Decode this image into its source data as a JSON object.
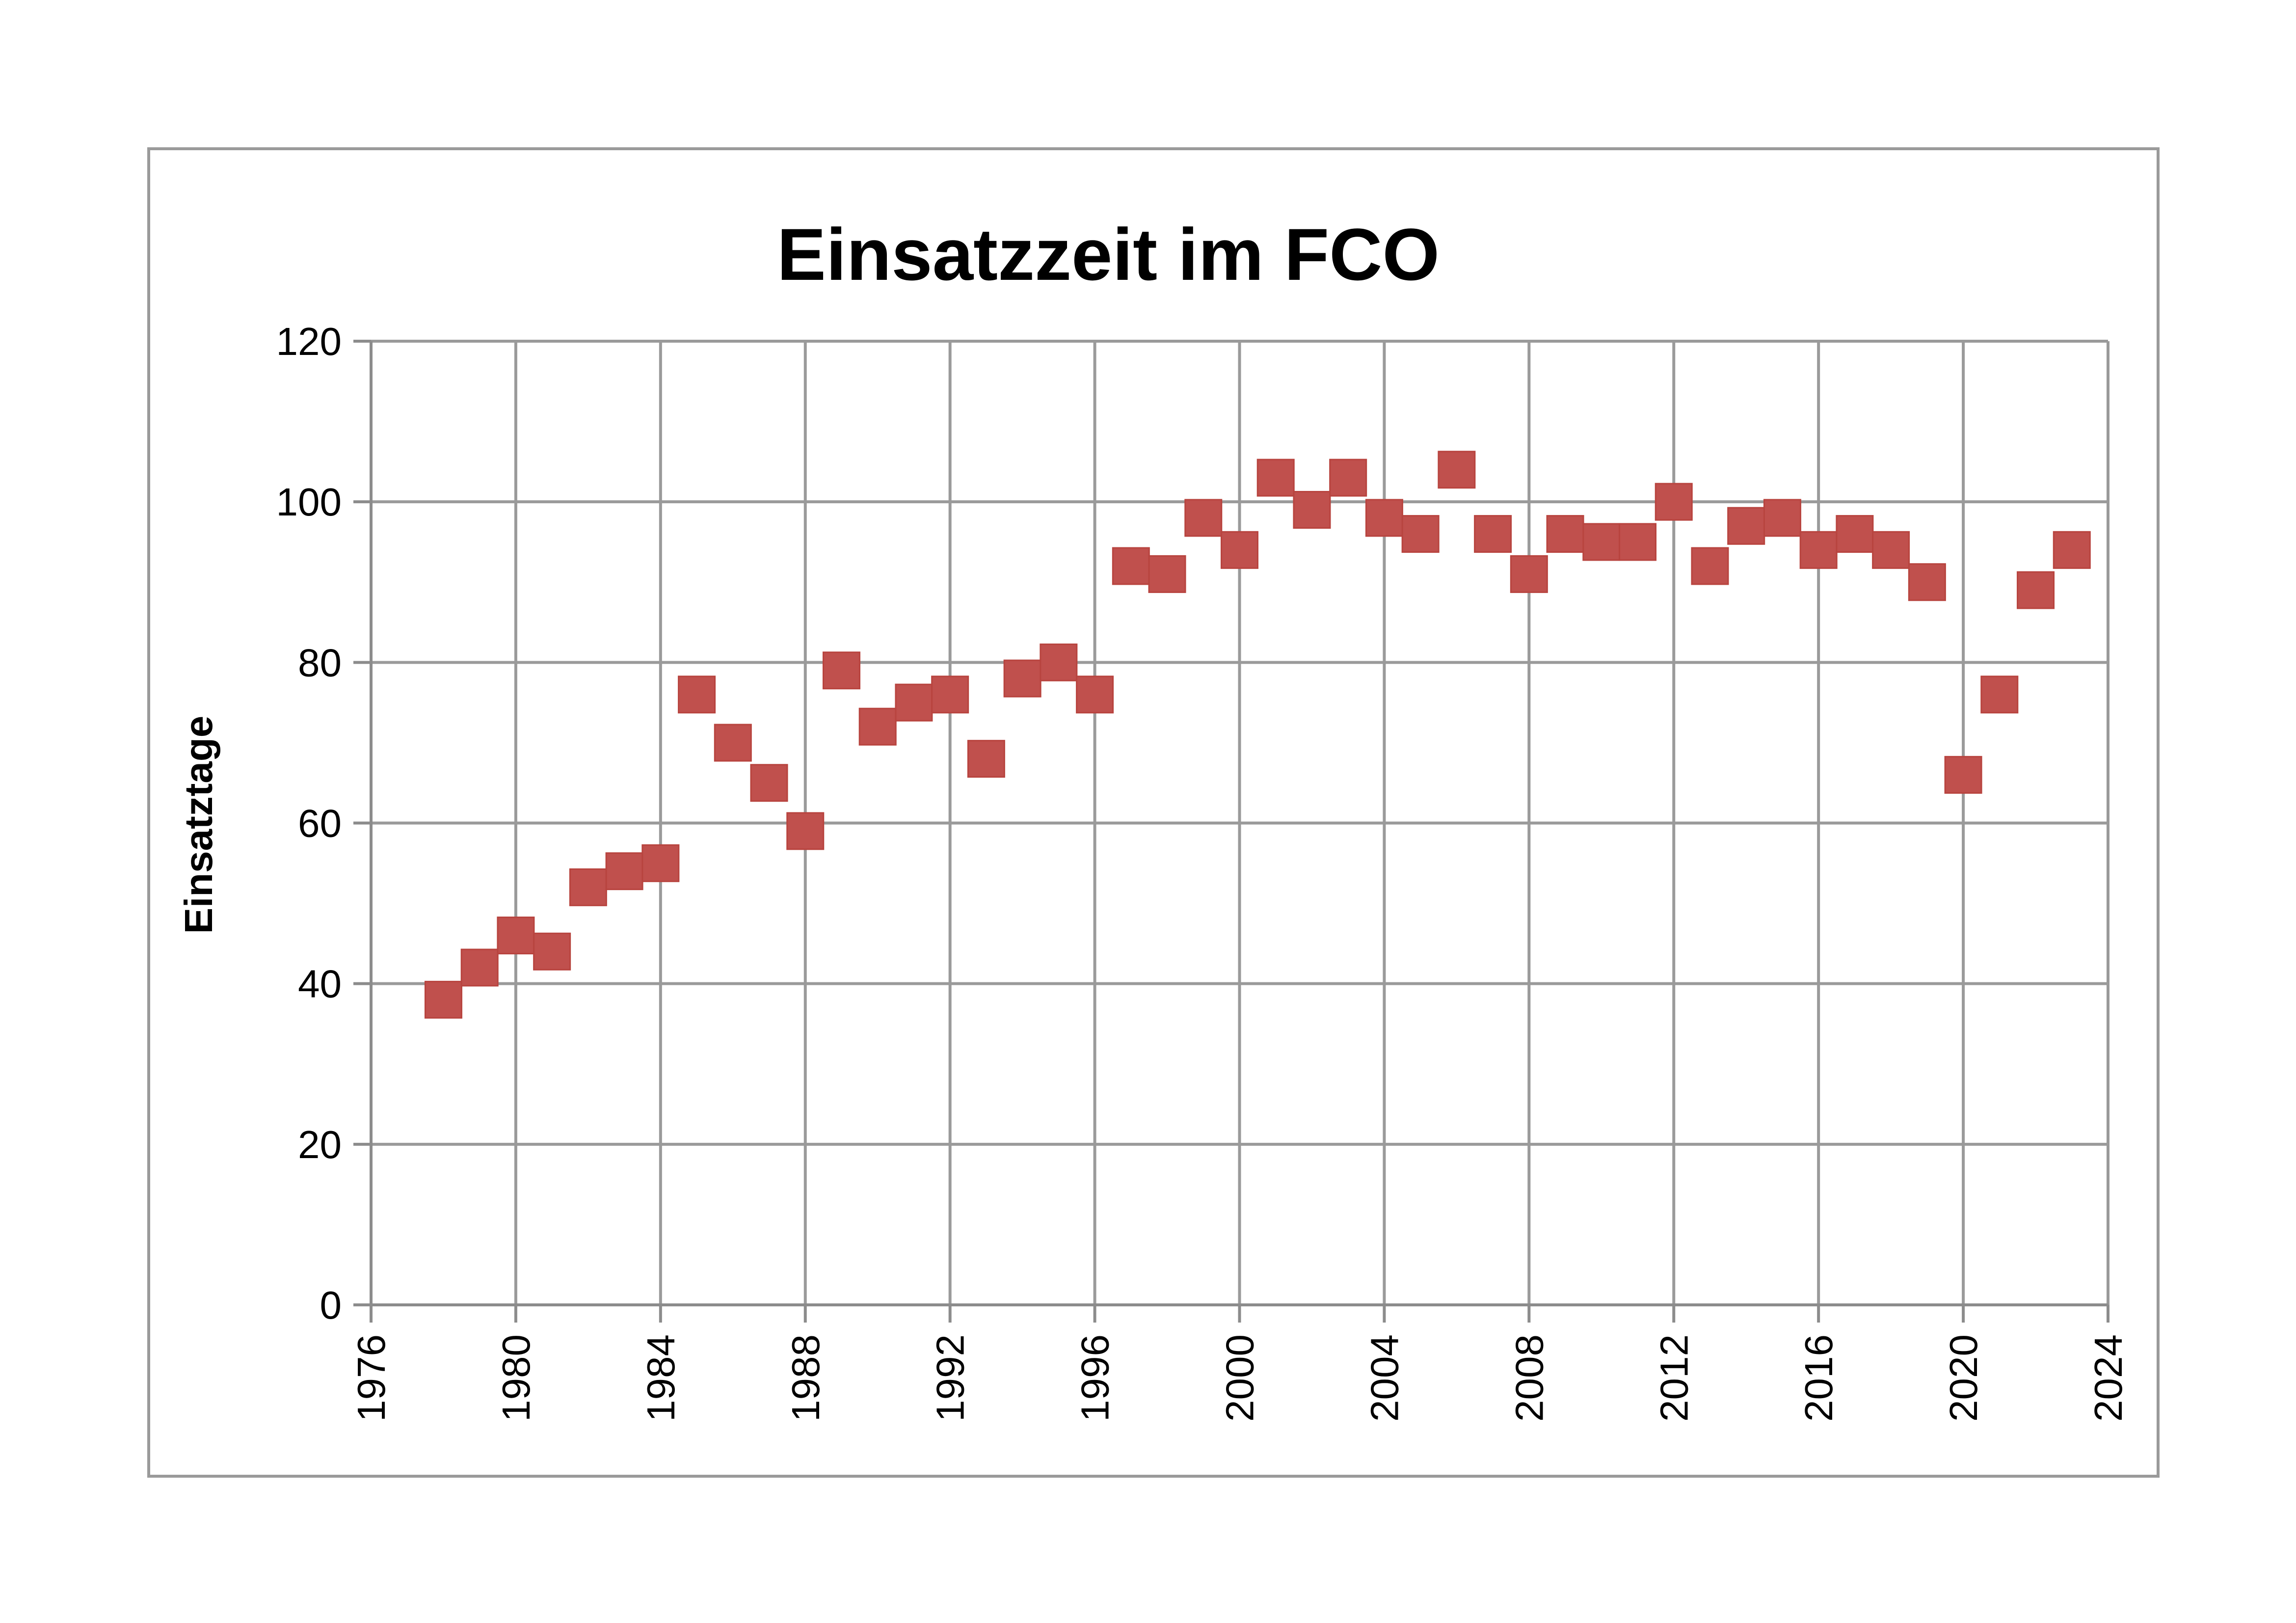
{
  "chart_data": {
    "type": "scatter",
    "title": "Einsatzzeit im FCO",
    "xlabel": "",
    "ylabel": "Einsatztage",
    "xlim": [
      1976,
      2024
    ],
    "ylim": [
      0,
      120
    ],
    "x_ticks": [
      "1976",
      "1980",
      "1984",
      "1988",
      "1992",
      "1996",
      "2000",
      "2004",
      "2008",
      "2012",
      "2016",
      "2020",
      "2024"
    ],
    "y_ticks": [
      "0",
      "20",
      "40",
      "60",
      "80",
      "100",
      "120"
    ],
    "grid": true,
    "legend": "none",
    "marker": "square",
    "marker_color": "#c0504d",
    "series": [
      {
        "x": [
          1978,
          1979,
          1980,
          1981,
          1982,
          1983,
          1984,
          1985,
          1986,
          1987,
          1988,
          1989,
          1990,
          1991,
          1992,
          1993,
          1994,
          1995,
          1996,
          1997,
          1998,
          1999,
          2000,
          2001,
          2002,
          2003,
          2004,
          2005,
          2006,
          2007,
          2008,
          2009,
          2010,
          2011,
          2012,
          2013,
          2014,
          2015,
          2016,
          2017,
          2018,
          2019,
          2020,
          2021,
          2022,
          2023
        ],
        "y": [
          38,
          42,
          46,
          44,
          52,
          54,
          55,
          76,
          70,
          65,
          59,
          79,
          72,
          75,
          76,
          68,
          78,
          80,
          76,
          92,
          91,
          98,
          94,
          103,
          99,
          103,
          98,
          96,
          104,
          96,
          91,
          96,
          95,
          95,
          100,
          92,
          97,
          98,
          94,
          96,
          94,
          90,
          66,
          76,
          89,
          94
        ]
      }
    ]
  }
}
